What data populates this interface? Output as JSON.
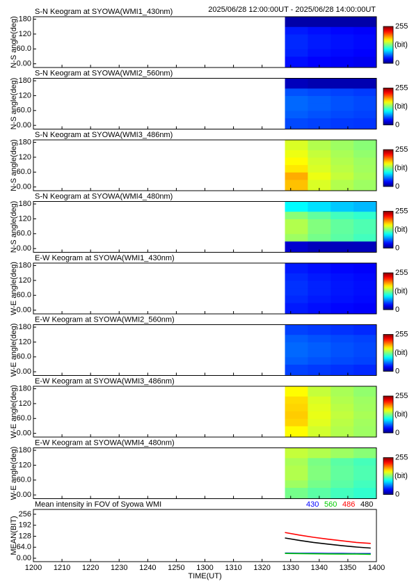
{
  "header": "2025/06/28 12:00:00UT - 2025/06/28 14:00:00UT",
  "shared": {
    "xlim": [
      "1200",
      "1400"
    ],
    "xticks": [
      "1200",
      "1210",
      "1220",
      "1230",
      "1240",
      "1250",
      "1300",
      "1310",
      "1320",
      "1330",
      "1340",
      "1350",
      "1400"
    ],
    "xlabel": "TIME(UT)",
    "clim": [
      0,
      255
    ],
    "cticks": [
      0,
      255
    ],
    "clabel": "(bit)",
    "yticks": [
      {
        "value": 0,
        "label": "0.00"
      },
      {
        "value": 60,
        "label": "60.0"
      },
      120,
      180
    ],
    "ylim": [
      -15,
      190
    ],
    "xbins": [
      "1328",
      "1336",
      "1344",
      "1352",
      "1400"
    ],
    "ybins": [
      -15,
      30,
      60,
      90,
      120,
      150,
      190
    ]
  },
  "chart_data": [
    {
      "type": "heatmap",
      "title": "S-N Keogram at SYOWA(WMI1_430nm)",
      "ylabel": "N-S angle(deg)",
      "values": [
        [
          35,
          32,
          30,
          28
        ],
        [
          40,
          36,
          34,
          32
        ],
        [
          42,
          38,
          36,
          34
        ],
        [
          42,
          38,
          36,
          34
        ],
        [
          38,
          35,
          33,
          31
        ],
        [
          10,
          10,
          10,
          10
        ]
      ]
    },
    {
      "type": "heatmap",
      "title": "S-N Keogram at SYOWA(WMI2_560nm)",
      "ylabel": "N-S angle(deg)",
      "values": [
        [
          50,
          48,
          46,
          45
        ],
        [
          55,
          52,
          50,
          48
        ],
        [
          58,
          55,
          52,
          50
        ],
        [
          58,
          55,
          52,
          50
        ],
        [
          52,
          50,
          48,
          46
        ],
        [
          15,
          12,
          12,
          12
        ]
      ]
    },
    {
      "type": "heatmap",
      "title": "S-N Keogram at SYOWA(WMI3_486nm)",
      "ylabel": "N-S angle(deg)",
      "values": [
        [
          175,
          150,
          140,
          135
        ],
        [
          180,
          155,
          145,
          138
        ],
        [
          165,
          150,
          142,
          136
        ],
        [
          160,
          148,
          140,
          135
        ],
        [
          155,
          145,
          138,
          132
        ],
        [
          150,
          140,
          135,
          130
        ]
      ]
    },
    {
      "type": "heatmap",
      "title": "S-N Keogram at SYOWA(WMI4_480nm)",
      "ylabel": "N-S angle(deg)",
      "values": [
        [
          20,
          15,
          15,
          15
        ],
        [
          135,
          125,
          118,
          112
        ],
        [
          140,
          128,
          120,
          115
        ],
        [
          140,
          128,
          120,
          115
        ],
        [
          130,
          120,
          112,
          108
        ],
        [
          95,
          88,
          82,
          78
        ]
      ]
    },
    {
      "type": "heatmap",
      "title": "E-W Keogram at SYOWA(WMI1_430nm)",
      "ylabel": "W-E angle(deg)",
      "values": [
        [
          38,
          35,
          33,
          31
        ],
        [
          42,
          38,
          36,
          34
        ],
        [
          44,
          40,
          37,
          35
        ],
        [
          44,
          40,
          37,
          35
        ],
        [
          42,
          38,
          36,
          34
        ],
        [
          38,
          35,
          33,
          31
        ]
      ]
    },
    {
      "type": "heatmap",
      "title": "E-W Keogram at SYOWA(WMI2_560nm)",
      "ylabel": "W-E angle(deg)",
      "values": [
        [
          48,
          46,
          44,
          42
        ],
        [
          55,
          52,
          50,
          48
        ],
        [
          58,
          55,
          52,
          50
        ],
        [
          58,
          55,
          52,
          50
        ],
        [
          55,
          52,
          50,
          48
        ],
        [
          48,
          46,
          44,
          42
        ]
      ]
    },
    {
      "type": "heatmap",
      "title": "E-W Keogram at SYOWA(WMI3_486nm)",
      "ylabel": "W-E angle(deg)",
      "values": [
        [
          160,
          148,
          140,
          135
        ],
        [
          170,
          152,
          142,
          136
        ],
        [
          172,
          154,
          144,
          138
        ],
        [
          170,
          152,
          142,
          136
        ],
        [
          168,
          150,
          140,
          135
        ],
        [
          160,
          145,
          138,
          132
        ]
      ]
    },
    {
      "type": "heatmap",
      "title": "E-W Keogram at SYOWA(WMI4_480nm)",
      "ylabel": "W-E angle(deg)",
      "values": [
        [
          125,
          118,
          112,
          108
        ],
        [
          135,
          125,
          118,
          112
        ],
        [
          140,
          128,
          120,
          115
        ],
        [
          140,
          128,
          120,
          115
        ],
        [
          138,
          126,
          118,
          113
        ],
        [
          145,
          140,
          135,
          130
        ]
      ]
    },
    {
      "type": "line",
      "title": "Mean intensity in FOV of Syowa WMI",
      "ylabel": "MEAN(BIT)",
      "ylim": [
        -20,
        284
      ],
      "yticks": [
        {
          "value": 0,
          "label": "0.00"
        },
        {
          "value": 64,
          "label": "64.0"
        },
        128,
        192,
        256
      ],
      "x": [
        "1328",
        "1333",
        "1338",
        "1343",
        "1348",
        "1353",
        "1358"
      ],
      "series": [
        {
          "name": "430",
          "color": "#0000ff",
          "values": [
            30,
            29,
            29,
            28,
            28,
            27,
            27
          ]
        },
        {
          "name": "560",
          "color": "#00cc00",
          "values": [
            28,
            27,
            26,
            25,
            24,
            24,
            23
          ]
        },
        {
          "name": "486",
          "color": "#ff0000",
          "values": [
            150,
            135,
            122,
            111,
            101,
            92,
            86
          ]
        },
        {
          "name": "480",
          "color": "#000000",
          "values": [
            118,
            104,
            92,
            82,
            73,
            65,
            59
          ]
        }
      ]
    }
  ]
}
